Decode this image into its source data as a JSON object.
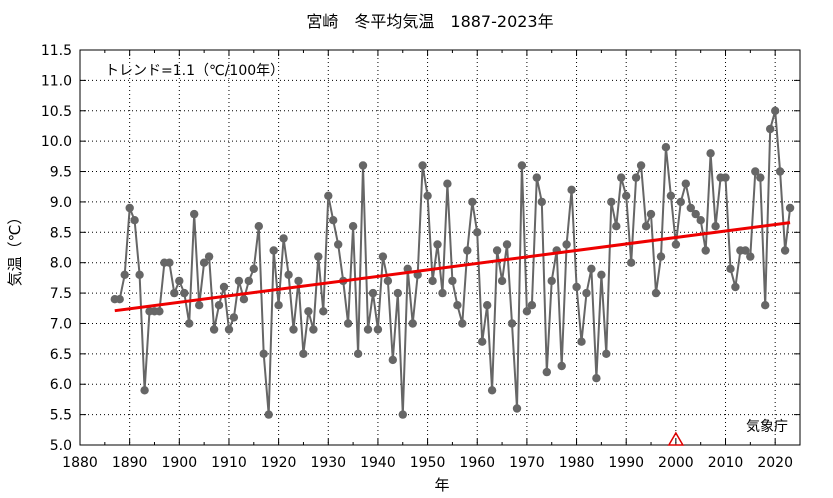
{
  "chart_data": {
    "type": "line",
    "title": "宮崎　冬平均気温　1887-2023年",
    "xlabel": "年",
    "ylabel": "気温（℃）",
    "trend_note": "トレンド=1.1（℃/100年）",
    "source_note": "気象庁",
    "xlim": [
      1880,
      2025
    ],
    "ylim": [
      5.0,
      11.5
    ],
    "x_ticks": [
      1880,
      1890,
      1900,
      1910,
      1920,
      1930,
      1940,
      1950,
      1960,
      1970,
      1980,
      1990,
      2000,
      2010,
      2020
    ],
    "y_ticks": [
      "5.0",
      "5.5",
      "6.0",
      "6.5",
      "7.0",
      "7.5",
      "8.0",
      "8.5",
      "9.0",
      "9.5",
      "10.0",
      "10.5",
      "11.0",
      "11.5"
    ],
    "grid": true,
    "marker_note": {
      "year": 2000,
      "symbol": "triangle",
      "color": "#dd0000"
    },
    "series": [
      {
        "color": "#666666",
        "start_year": 1887,
        "values": [
          7.4,
          7.4,
          7.8,
          8.9,
          8.7,
          7.8,
          5.9,
          7.2,
          7.2,
          7.2,
          8.0,
          8.0,
          7.5,
          7.7,
          7.5,
          7.0,
          8.8,
          7.3,
          8.0,
          8.1,
          6.9,
          7.3,
          7.6,
          6.9,
          7.1,
          7.7,
          7.4,
          7.7,
          7.9,
          8.6,
          6.5,
          5.5,
          8.2,
          7.3,
          8.4,
          7.8,
          6.9,
          7.7,
          6.5,
          7.2,
          6.9,
          8.1,
          7.2,
          9.1,
          8.7,
          8.3,
          7.7,
          7.0,
          8.6,
          6.5,
          9.6,
          6.9,
          7.5,
          6.9,
          8.1,
          7.7,
          6.4,
          7.5,
          5.5,
          7.9,
          7.0,
          7.8,
          9.6,
          9.1,
          7.7,
          8.3,
          7.5,
          9.3,
          7.7,
          7.3,
          7.0,
          8.2,
          9.0,
          8.5,
          6.7,
          7.3,
          5.9,
          8.2,
          7.7,
          8.3,
          7.0,
          5.6,
          9.6,
          7.2,
          7.3,
          9.4,
          9.0,
          6.2,
          7.7,
          8.2,
          6.3,
          8.3,
          9.2,
          7.6,
          6.7,
          7.5,
          7.9,
          6.1,
          7.8,
          6.5,
          9.0,
          8.6,
          9.4,
          9.1,
          8.0,
          9.4,
          9.6,
          8.6,
          8.8,
          7.5,
          8.1,
          9.9,
          9.1,
          8.3,
          9.0,
          9.3,
          8.9,
          8.8,
          8.7,
          8.2,
          9.8,
          8.6,
          9.4,
          9.4,
          7.9,
          7.6,
          8.2,
          8.2,
          8.1,
          9.5,
          9.4,
          7.3,
          10.2,
          10.5,
          9.5,
          8.2,
          8.9
        ]
      }
    ],
    "trend": {
      "color": "#ee0000",
      "x": [
        1887,
        2023
      ],
      "y": [
        7.21,
        8.66
      ]
    }
  }
}
